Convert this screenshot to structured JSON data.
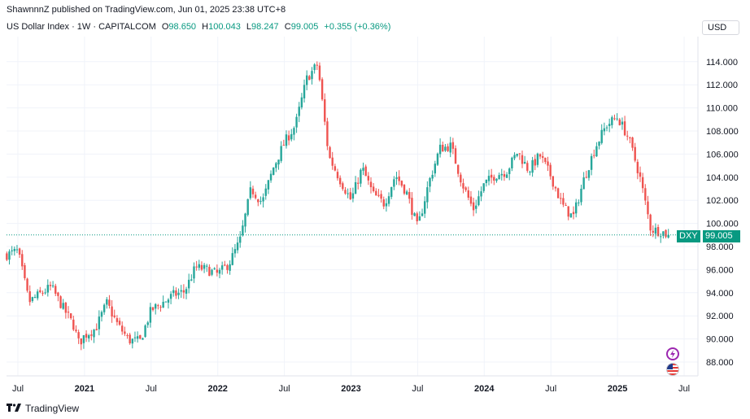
{
  "header": {
    "published": "ShawnnnZ published on TradingView.com, Jun 01, 2025 23:38 UTC+8"
  },
  "legend": {
    "symbol": "US Dollar Index · 1W · CAPITALCOM",
    "o_key": "O",
    "o_val": "98.650",
    "h_key": "H",
    "h_val": "100.043",
    "l_key": "L",
    "l_val": "98.247",
    "c_key": "C",
    "c_val": "99.005",
    "change": "+0.355 (+0.36%)"
  },
  "currency_button": "USD",
  "price_tag": {
    "ticker": "DXY",
    "value": "99.005"
  },
  "footer": {
    "brand": "TradingView"
  },
  "colors": {
    "up": "#26a69a",
    "down": "#ef5350",
    "tag_green": "#089981",
    "grid": "#f0f3fa"
  },
  "icons": [
    "flash-event-icon",
    "us-flag-event-icon",
    "tradingview-logo-icon"
  ],
  "chart_data": {
    "type": "candlestick",
    "title": "US Dollar Index · 1W · CAPITALCOM",
    "ylim": [
      87,
      115
    ],
    "y_ticks": [
      "88.000",
      "90.000",
      "92.000",
      "94.000",
      "96.000",
      "98.000",
      "100.000",
      "102.000",
      "104.000",
      "106.000",
      "108.000",
      "110.000",
      "112.000",
      "114.000"
    ],
    "x_ticks": [
      "Jul",
      "2021",
      "Jul",
      "2022",
      "Jul",
      "2023",
      "Jul",
      "2024",
      "Jul",
      "2025",
      "Jul"
    ],
    "x_tick_months": [
      0,
      6,
      12,
      18,
      24,
      30,
      36,
      42,
      48,
      54,
      60
    ],
    "start_month": "2020-07",
    "last_close": 99.005,
    "path": [
      [
        "2020-06",
        97.3
      ],
      [
        "2020-07",
        97.6
      ],
      [
        "2020-08",
        93.2
      ],
      [
        "2020-09",
        93.9
      ],
      [
        "2020-10",
        94.5
      ],
      [
        "2020-11",
        92.8
      ],
      [
        "2020-12",
        91.2
      ],
      [
        "2020-12",
        89.6
      ],
      [
        "2021-01",
        90.3
      ],
      [
        "2021-02",
        90.9
      ],
      [
        "2021-03",
        93.1
      ],
      [
        "2021-04",
        91.2
      ],
      [
        "2021-05",
        89.9
      ],
      [
        "2021-06",
        89.8
      ],
      [
        "2021-07",
        92.5
      ],
      [
        "2021-08",
        93.1
      ],
      [
        "2021-09",
        93.8
      ],
      [
        "2021-10",
        94.1
      ],
      [
        "2021-11",
        96.2
      ],
      [
        "2021-12",
        96.0
      ],
      [
        "2022-01",
        95.6
      ],
      [
        "2022-02",
        96.5
      ],
      [
        "2022-03",
        98.5
      ],
      [
        "2022-04",
        103.0
      ],
      [
        "2022-05",
        101.8
      ],
      [
        "2022-06",
        104.8
      ],
      [
        "2022-07",
        107.0
      ],
      [
        "2022-08",
        108.5
      ],
      [
        "2022-09",
        112.5
      ],
      [
        "2022-10",
        113.8
      ],
      [
        "2022-11",
        105.8
      ],
      [
        "2022-12",
        103.8
      ],
      [
        "2023-01",
        102.0
      ],
      [
        "2023-02",
        104.8
      ],
      [
        "2023-03",
        102.5
      ],
      [
        "2023-04",
        101.7
      ],
      [
        "2023-05",
        104.2
      ],
      [
        "2023-06",
        102.7
      ],
      [
        "2023-07",
        99.6
      ],
      [
        "2023-08",
        103.5
      ],
      [
        "2023-09",
        106.5
      ],
      [
        "2023-10",
        106.7
      ],
      [
        "2023-11",
        103.5
      ],
      [
        "2023-12",
        101.2
      ],
      [
        "2024-01",
        103.4
      ],
      [
        "2024-02",
        104.2
      ],
      [
        "2024-03",
        104.5
      ],
      [
        "2024-04",
        106.2
      ],
      [
        "2024-05",
        104.6
      ],
      [
        "2024-06",
        105.9
      ],
      [
        "2024-07",
        104.1
      ],
      [
        "2024-08",
        101.6
      ],
      [
        "2024-09",
        100.5
      ],
      [
        "2024-10",
        103.9
      ],
      [
        "2024-11",
        106.6
      ],
      [
        "2024-12",
        108.5
      ],
      [
        "2025-01",
        109.2
      ],
      [
        "2025-02",
        107.4
      ],
      [
        "2025-03",
        104.1
      ],
      [
        "2025-04",
        99.5
      ],
      [
        "2025-05",
        99.3
      ],
      [
        "2025-05",
        99.005
      ]
    ]
  }
}
